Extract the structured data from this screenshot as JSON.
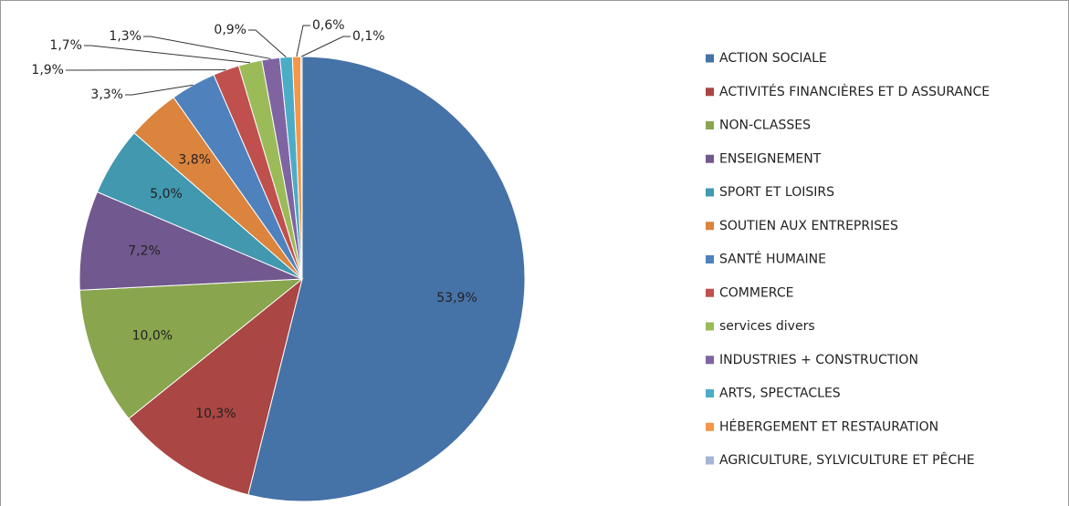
{
  "chart_data": {
    "type": "pie",
    "categories": [
      "ACTION SOCIALE",
      "ACTIVITÉS FINANCIÈRES ET D ASSURANCE",
      "NON-CLASSES",
      "ENSEIGNEMENT",
      "SPORT ET LOISIRS",
      "SOUTIEN AUX ENTREPRISES",
      "SANTÉ HUMAINE",
      "COMMERCE",
      "services divers",
      "INDUSTRIES + CONSTRUCTION",
      "ARTS, SPECTACLES",
      "HÉBERGEMENT ET RESTAURATION",
      "AGRICULTURE, SYLVICULTURE ET PÊCHE"
    ],
    "values": [
      53.9,
      10.3,
      10.0,
      7.2,
      5.0,
      3.8,
      3.3,
      1.9,
      1.7,
      1.3,
      0.9,
      0.6,
      0.1
    ],
    "value_labels": [
      "53,9%",
      "10,3%",
      "10,0%",
      "7,2%",
      "5,0%",
      "3,8%",
      "3,3%",
      "1,9%",
      "1,7%",
      "1,3%",
      "0,9%",
      "0,6%",
      "0,1%"
    ],
    "colors": [
      "#4572a7",
      "#aa4643",
      "#89a54e",
      "#71588f",
      "#4198af",
      "#db843d",
      "#4f81bd",
      "#c0504d",
      "#9bbb59",
      "#8064a2",
      "#4bacc6",
      "#f79646",
      "#a5b6d6"
    ],
    "legend": "right"
  }
}
